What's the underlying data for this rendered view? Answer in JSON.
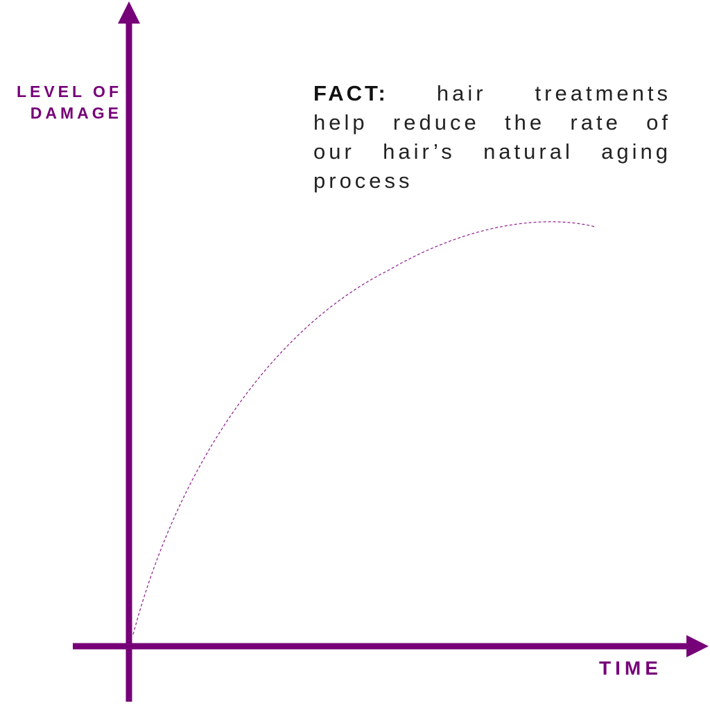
{
  "y_axis_label": [
    "LEVEL OF",
    "DAMAGE"
  ],
  "x_axis_label": "TIME",
  "fact": {
    "label": "FACT:",
    "lines": [
      "hair treatments",
      "help reduce the rate of",
      "our hair’s natural aging",
      "process"
    ]
  }
}
